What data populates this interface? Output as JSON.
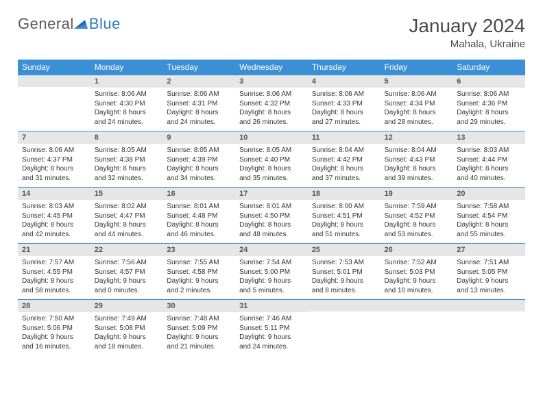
{
  "brand": {
    "part1": "General",
    "part2": "Blue"
  },
  "header": {
    "title": "January 2024",
    "location": "Mahala, Ukraine"
  },
  "colors": {
    "header_bg": "#3b8fd4",
    "header_text": "#ffffff",
    "daynum_bg": "#e6e6e6",
    "daynum_border": "#3b8fd4",
    "body_text": "#333333",
    "logo_blue": "#2c7bbf",
    "logo_gray": "#5a5a5a"
  },
  "weekdays": [
    "Sunday",
    "Monday",
    "Tuesday",
    "Wednesday",
    "Thursday",
    "Friday",
    "Saturday"
  ],
  "weeks": [
    [
      {
        "n": "",
        "sr": "",
        "ss": "",
        "d1": "",
        "d2": ""
      },
      {
        "n": "1",
        "sr": "Sunrise: 8:06 AM",
        "ss": "Sunset: 4:30 PM",
        "d1": "Daylight: 8 hours",
        "d2": "and 24 minutes."
      },
      {
        "n": "2",
        "sr": "Sunrise: 8:06 AM",
        "ss": "Sunset: 4:31 PM",
        "d1": "Daylight: 8 hours",
        "d2": "and 24 minutes."
      },
      {
        "n": "3",
        "sr": "Sunrise: 8:06 AM",
        "ss": "Sunset: 4:32 PM",
        "d1": "Daylight: 8 hours",
        "d2": "and 26 minutes."
      },
      {
        "n": "4",
        "sr": "Sunrise: 8:06 AM",
        "ss": "Sunset: 4:33 PM",
        "d1": "Daylight: 8 hours",
        "d2": "and 27 minutes."
      },
      {
        "n": "5",
        "sr": "Sunrise: 8:06 AM",
        "ss": "Sunset: 4:34 PM",
        "d1": "Daylight: 8 hours",
        "d2": "and 28 minutes."
      },
      {
        "n": "6",
        "sr": "Sunrise: 8:06 AM",
        "ss": "Sunset: 4:36 PM",
        "d1": "Daylight: 8 hours",
        "d2": "and 29 minutes."
      }
    ],
    [
      {
        "n": "7",
        "sr": "Sunrise: 8:06 AM",
        "ss": "Sunset: 4:37 PM",
        "d1": "Daylight: 8 hours",
        "d2": "and 31 minutes."
      },
      {
        "n": "8",
        "sr": "Sunrise: 8:05 AM",
        "ss": "Sunset: 4:38 PM",
        "d1": "Daylight: 8 hours",
        "d2": "and 32 minutes."
      },
      {
        "n": "9",
        "sr": "Sunrise: 8:05 AM",
        "ss": "Sunset: 4:39 PM",
        "d1": "Daylight: 8 hours",
        "d2": "and 34 minutes."
      },
      {
        "n": "10",
        "sr": "Sunrise: 8:05 AM",
        "ss": "Sunset: 4:40 PM",
        "d1": "Daylight: 8 hours",
        "d2": "and 35 minutes."
      },
      {
        "n": "11",
        "sr": "Sunrise: 8:04 AM",
        "ss": "Sunset: 4:42 PM",
        "d1": "Daylight: 8 hours",
        "d2": "and 37 minutes."
      },
      {
        "n": "12",
        "sr": "Sunrise: 8:04 AM",
        "ss": "Sunset: 4:43 PM",
        "d1": "Daylight: 8 hours",
        "d2": "and 39 minutes."
      },
      {
        "n": "13",
        "sr": "Sunrise: 8:03 AM",
        "ss": "Sunset: 4:44 PM",
        "d1": "Daylight: 8 hours",
        "d2": "and 40 minutes."
      }
    ],
    [
      {
        "n": "14",
        "sr": "Sunrise: 8:03 AM",
        "ss": "Sunset: 4:45 PM",
        "d1": "Daylight: 8 hours",
        "d2": "and 42 minutes."
      },
      {
        "n": "15",
        "sr": "Sunrise: 8:02 AM",
        "ss": "Sunset: 4:47 PM",
        "d1": "Daylight: 8 hours",
        "d2": "and 44 minutes."
      },
      {
        "n": "16",
        "sr": "Sunrise: 8:01 AM",
        "ss": "Sunset: 4:48 PM",
        "d1": "Daylight: 8 hours",
        "d2": "and 46 minutes."
      },
      {
        "n": "17",
        "sr": "Sunrise: 8:01 AM",
        "ss": "Sunset: 4:50 PM",
        "d1": "Daylight: 8 hours",
        "d2": "and 48 minutes."
      },
      {
        "n": "18",
        "sr": "Sunrise: 8:00 AM",
        "ss": "Sunset: 4:51 PM",
        "d1": "Daylight: 8 hours",
        "d2": "and 51 minutes."
      },
      {
        "n": "19",
        "sr": "Sunrise: 7:59 AM",
        "ss": "Sunset: 4:52 PM",
        "d1": "Daylight: 8 hours",
        "d2": "and 53 minutes."
      },
      {
        "n": "20",
        "sr": "Sunrise: 7:58 AM",
        "ss": "Sunset: 4:54 PM",
        "d1": "Daylight: 8 hours",
        "d2": "and 55 minutes."
      }
    ],
    [
      {
        "n": "21",
        "sr": "Sunrise: 7:57 AM",
        "ss": "Sunset: 4:55 PM",
        "d1": "Daylight: 8 hours",
        "d2": "and 58 minutes."
      },
      {
        "n": "22",
        "sr": "Sunrise: 7:56 AM",
        "ss": "Sunset: 4:57 PM",
        "d1": "Daylight: 9 hours",
        "d2": "and 0 minutes."
      },
      {
        "n": "23",
        "sr": "Sunrise: 7:55 AM",
        "ss": "Sunset: 4:58 PM",
        "d1": "Daylight: 9 hours",
        "d2": "and 2 minutes."
      },
      {
        "n": "24",
        "sr": "Sunrise: 7:54 AM",
        "ss": "Sunset: 5:00 PM",
        "d1": "Daylight: 9 hours",
        "d2": "and 5 minutes."
      },
      {
        "n": "25",
        "sr": "Sunrise: 7:53 AM",
        "ss": "Sunset: 5:01 PM",
        "d1": "Daylight: 9 hours",
        "d2": "and 8 minutes."
      },
      {
        "n": "26",
        "sr": "Sunrise: 7:52 AM",
        "ss": "Sunset: 5:03 PM",
        "d1": "Daylight: 9 hours",
        "d2": "and 10 minutes."
      },
      {
        "n": "27",
        "sr": "Sunrise: 7:51 AM",
        "ss": "Sunset: 5:05 PM",
        "d1": "Daylight: 9 hours",
        "d2": "and 13 minutes."
      }
    ],
    [
      {
        "n": "28",
        "sr": "Sunrise: 7:50 AM",
        "ss": "Sunset: 5:06 PM",
        "d1": "Daylight: 9 hours",
        "d2": "and 16 minutes."
      },
      {
        "n": "29",
        "sr": "Sunrise: 7:49 AM",
        "ss": "Sunset: 5:08 PM",
        "d1": "Daylight: 9 hours",
        "d2": "and 18 minutes."
      },
      {
        "n": "30",
        "sr": "Sunrise: 7:48 AM",
        "ss": "Sunset: 5:09 PM",
        "d1": "Daylight: 9 hours",
        "d2": "and 21 minutes."
      },
      {
        "n": "31",
        "sr": "Sunrise: 7:46 AM",
        "ss": "Sunset: 5:11 PM",
        "d1": "Daylight: 9 hours",
        "d2": "and 24 minutes."
      },
      {
        "n": "",
        "sr": "",
        "ss": "",
        "d1": "",
        "d2": ""
      },
      {
        "n": "",
        "sr": "",
        "ss": "",
        "d1": "",
        "d2": ""
      },
      {
        "n": "",
        "sr": "",
        "ss": "",
        "d1": "",
        "d2": ""
      }
    ]
  ]
}
